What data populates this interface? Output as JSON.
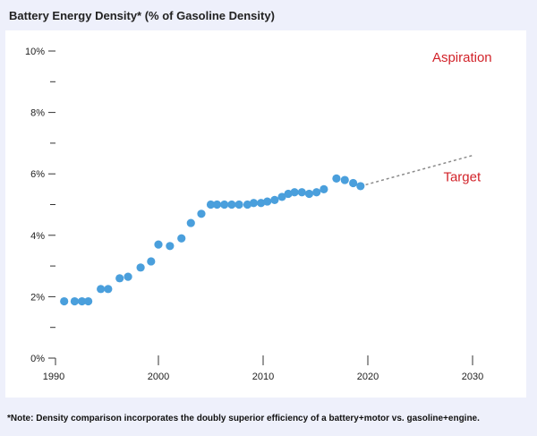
{
  "title": "Battery Energy Density* (% of Gasoline Density)",
  "note": "*Note: Density comparison incorporates the doubly superior efficiency of a battery+motor vs. gasoline+engine.",
  "colors": {
    "points": "#4a9fdc",
    "annotation": "#d2232a",
    "projection": "#8a8a8a",
    "axis": "#333333"
  },
  "chart_data": {
    "type": "scatter",
    "title": "Battery Energy Density* (% of Gasoline Density)",
    "xlabel": "",
    "ylabel": "",
    "xlim": [
      1990,
      2030
    ],
    "ylim": [
      0,
      10
    ],
    "grid": false,
    "x_ticks": [
      "1990",
      "2000",
      "2010",
      "2020",
      "2030"
    ],
    "x_tick_values": [
      1990,
      2000,
      2010,
      2020,
      2030
    ],
    "y_ticks": [
      "0%",
      "2%",
      "4%",
      "6%",
      "8%",
      "10%"
    ],
    "y_tick_values": [
      0,
      2,
      4,
      6,
      8,
      10
    ],
    "y_minor_ticks": [
      1,
      3,
      5,
      7,
      9
    ],
    "series": [
      {
        "x": [
          1991,
          1992,
          1992.7,
          1993.3,
          1994.5,
          1995.2,
          1996.3,
          1997.1,
          1998.3,
          1999.3,
          2000,
          2001.1,
          2002.2,
          2003.1,
          2004.1,
          2005,
          2005.6,
          2006.3,
          2007,
          2007.7,
          2008.5,
          2009.1,
          2009.8,
          2010.4,
          2011.1,
          2011.8,
          2012.4,
          2013,
          2013.7,
          2014.4,
          2015.1,
          2015.8,
          2017,
          2017.8,
          2018.6,
          2019.3
        ],
        "y": [
          1.85,
          1.85,
          1.85,
          1.85,
          2.25,
          2.25,
          2.6,
          2.65,
          2.95,
          3.15,
          3.7,
          3.65,
          3.9,
          4.4,
          4.7,
          5.0,
          5.0,
          5.0,
          5.0,
          5.0,
          5.0,
          5.05,
          5.05,
          5.1,
          5.15,
          5.25,
          5.35,
          5.4,
          5.4,
          5.35,
          5.4,
          5.5,
          5.85,
          5.8,
          5.7,
          5.6
        ]
      }
    ],
    "projection": {
      "x": [
        2019.3,
        2030
      ],
      "y": [
        5.6,
        6.6
      ]
    },
    "annotations": [
      {
        "text": "Aspiration",
        "x": 2029,
        "y": 9.8
      },
      {
        "text": "Target",
        "x": 2029,
        "y": 5.9
      }
    ]
  }
}
